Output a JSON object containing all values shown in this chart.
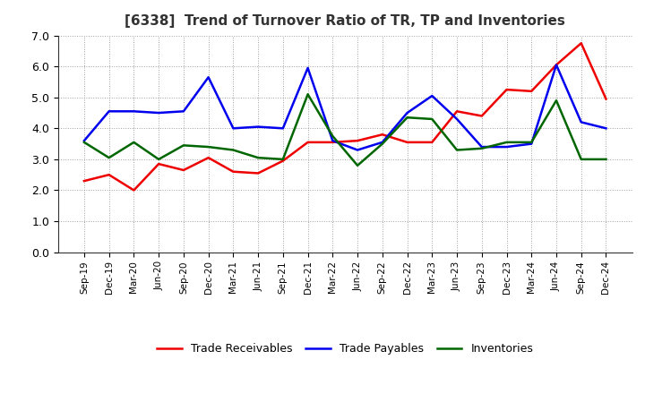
{
  "title": "[6338]  Trend of Turnover Ratio of TR, TP and Inventories",
  "x_labels": [
    "Sep-19",
    "Dec-19",
    "Mar-20",
    "Jun-20",
    "Sep-20",
    "Dec-20",
    "Mar-21",
    "Jun-21",
    "Sep-21",
    "Dec-21",
    "Mar-22",
    "Jun-22",
    "Sep-22",
    "Dec-22",
    "Mar-23",
    "Jun-23",
    "Sep-23",
    "Dec-23",
    "Mar-24",
    "Jun-24",
    "Sep-24",
    "Dec-24"
  ],
  "trade_receivables": [
    2.3,
    2.5,
    2.0,
    2.85,
    2.65,
    3.05,
    2.6,
    2.55,
    2.95,
    3.55,
    3.55,
    3.6,
    3.8,
    3.55,
    3.55,
    4.55,
    4.4,
    5.25,
    5.2,
    6.05,
    6.75,
    4.95
  ],
  "trade_payables": [
    3.6,
    4.55,
    4.55,
    4.5,
    4.55,
    5.65,
    4.0,
    4.05,
    4.0,
    5.95,
    3.6,
    3.3,
    3.55,
    4.5,
    5.05,
    4.3,
    3.4,
    3.4,
    3.5,
    6.05,
    4.2,
    4.0
  ],
  "inventories": [
    3.55,
    3.05,
    3.55,
    3.0,
    3.45,
    3.4,
    3.3,
    3.05,
    3.0,
    5.1,
    3.75,
    2.8,
    3.5,
    4.35,
    4.3,
    3.3,
    3.35,
    3.55,
    3.55,
    4.9,
    3.0,
    3.0
  ],
  "ylim": [
    0.0,
    7.0
  ],
  "yticks": [
    0.0,
    1.0,
    2.0,
    3.0,
    4.0,
    5.0,
    6.0,
    7.0
  ],
  "color_tr": "#ee0000",
  "color_tp": "#0000ee",
  "color_inv": "#006600",
  "legend_labels": [
    "Trade Receivables",
    "Trade Payables",
    "Inventories"
  ],
  "linewidth": 1.8,
  "background_color": "#ffffff",
  "grid_color": "#888888",
  "title_color": "#333333"
}
